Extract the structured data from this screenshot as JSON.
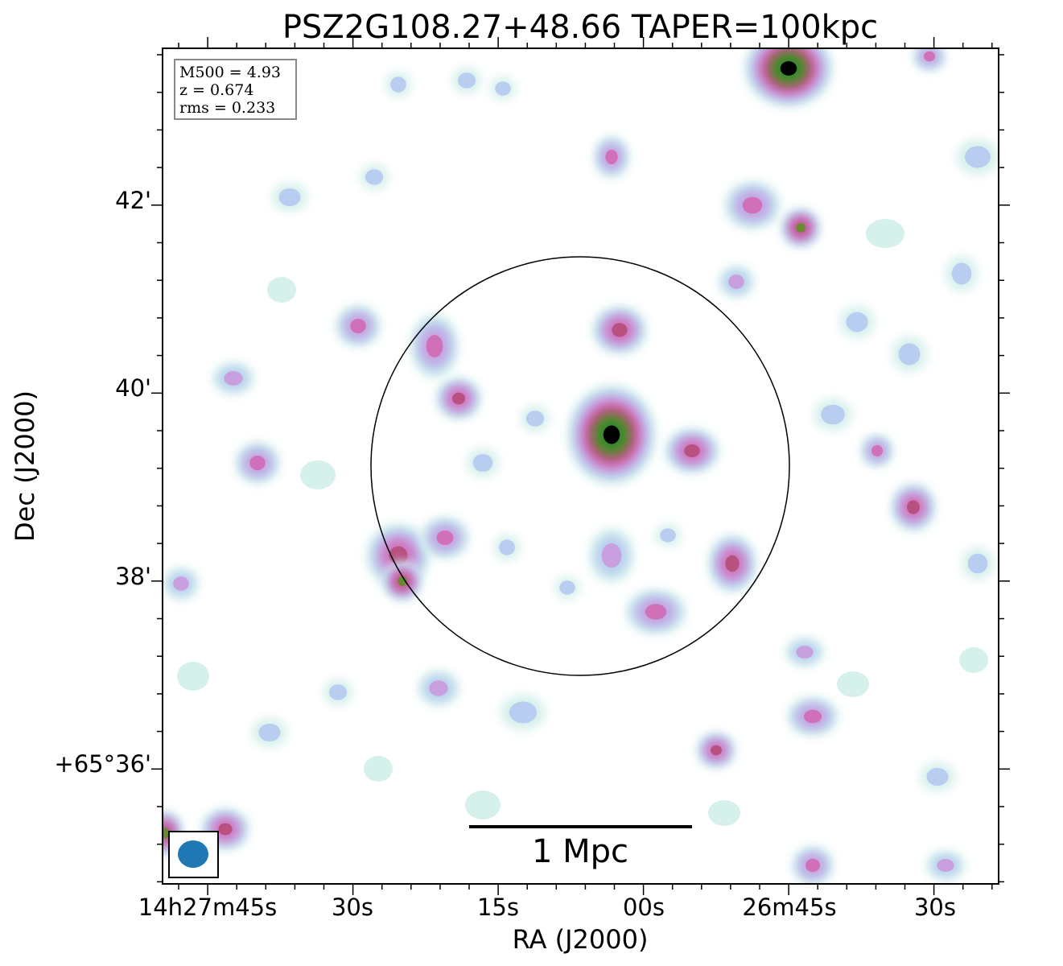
{
  "chart_data": {
    "type": "heatmap",
    "title": "PSZ2G108.27+48.66 TAPER=100kpc",
    "xlabel": "RA (J2000)",
    "ylabel": "Dec (J2000)",
    "x_ticks": [
      "14h27m45s",
      "30s",
      "15s",
      "00s",
      "26m45s",
      "30s"
    ],
    "y_ticks": [
      "42'",
      "40'",
      "38'",
      "+65°36'"
    ],
    "info_box": [
      "M500 = 4.93",
      "z = 0.674",
      "rms = 0.233"
    ],
    "scalebar_label": "1 Mpc",
    "colormap": [
      "#ffffff",
      "#d6f0ec",
      "#b8cdf0",
      "#c8a0e0",
      "#d070b8",
      "#b85080",
      "#6a8a30",
      "#2a8a2a",
      "#000000"
    ],
    "beam_color": "#1f77b4",
    "circle_color": "#000000",
    "grid": false
  }
}
